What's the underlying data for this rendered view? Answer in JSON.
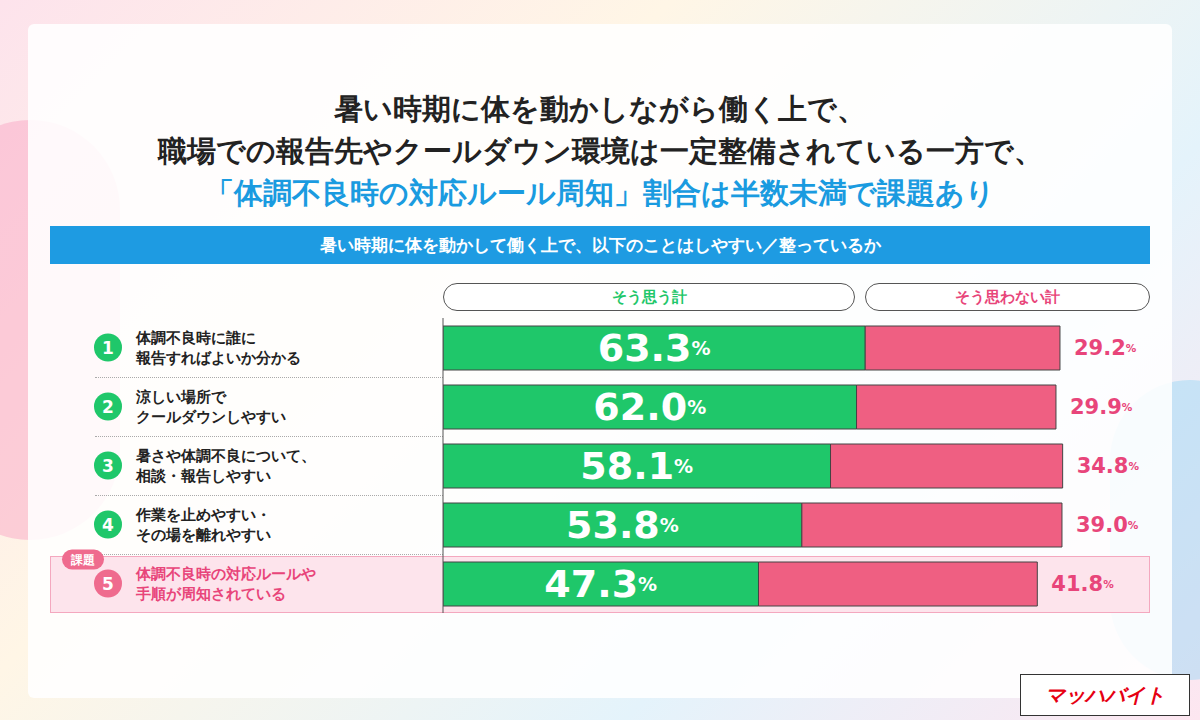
{
  "chart_data": {
    "type": "bar",
    "orientation": "horizontal",
    "stacked": true,
    "data_labels": true,
    "tick_labels": false,
    "legend": "top",
    "title": [
      "暑い時期に体を動かしながら働く上で、",
      "職場での報告先やクールダウン環境は一定整備されている一方で、",
      "「体調不良時の対応ルール周知」割合は半数未満で課題あり"
    ],
    "subtitle": "暑い時期に体を動かして働く上で、以下のことはしやすい／整っているか",
    "categories": [
      "体調不良時に誰に\n報告すればよいか分かる",
      "涼しい場所で\nクールダウンしやすい",
      "暑さや体調不良について、\n相談・報告しやすい",
      "作業を止めやすい・\nその場を離れやすい",
      "体調不良時の対応ルールや\n手順が周知されている"
    ],
    "item_numbers": [
      1,
      2,
      3,
      4,
      5
    ],
    "series": [
      {
        "name": "そう思う計",
        "color": "#1fc76a",
        "values": [
          63.3,
          62.0,
          58.1,
          53.8,
          47.3
        ],
        "value_labels": [
          "63.3%",
          "62.0%",
          "58.1%",
          "53.8%",
          "47.3%"
        ]
      },
      {
        "name": "そう思わない計",
        "color": "#ef5f82",
        "values": [
          29.2,
          29.9,
          34.8,
          39.0,
          41.8
        ],
        "value_labels": [
          "29.2%",
          "29.9%",
          "34.8%",
          "39.0%",
          "41.8%"
        ]
      }
    ],
    "xlim": [
      0,
      100
    ],
    "annotation": {
      "text": "課題",
      "category": "体調不良時の対応ルールや\n手順が周知されている"
    },
    "logo": "マッハバイト"
  }
}
